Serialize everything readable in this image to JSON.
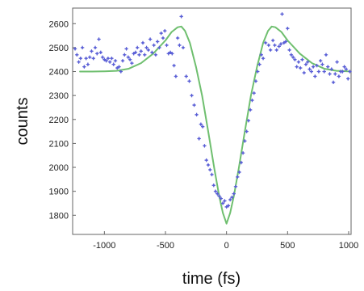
{
  "chart_data": {
    "type": "scatter",
    "title": "",
    "xlabel": "time (fs)",
    "ylabel": "counts",
    "xlim": [
      -1260,
      1020
    ],
    "ylim": [
      1720,
      2665
    ],
    "xticks": [
      -1000,
      -500,
      0,
      500,
      1000
    ],
    "yticks": [
      1800,
      1900,
      2000,
      2100,
      2200,
      2300,
      2400,
      2500,
      2600
    ],
    "grid": false,
    "colors": {
      "data": "#5a5fd6",
      "fit": "#6fbf6f",
      "axis": "#666666"
    },
    "series": [
      {
        "type": "scatter",
        "marker": "*",
        "points": [
          [
            -1240,
            2495
          ],
          [
            -1225,
            2470
          ],
          [
            -1210,
            2440
          ],
          [
            -1195,
            2455
          ],
          [
            -1180,
            2500
          ],
          [
            -1165,
            2420
          ],
          [
            -1150,
            2455
          ],
          [
            -1135,
            2430
          ],
          [
            -1120,
            2460
          ],
          [
            -1105,
            2485
          ],
          [
            -1090,
            2455
          ],
          [
            -1075,
            2500
          ],
          [
            -1060,
            2475
          ],
          [
            -1045,
            2535
          ],
          [
            -1030,
            2480
          ],
          [
            -1015,
            2460
          ],
          [
            -1000,
            2450
          ],
          [
            -985,
            2445
          ],
          [
            -970,
            2455
          ],
          [
            -955,
            2440
          ],
          [
            -940,
            2455
          ],
          [
            -925,
            2430
          ],
          [
            -910,
            2445
          ],
          [
            -895,
            2415
          ],
          [
            -880,
            2420
          ],
          [
            -865,
            2400
          ],
          [
            -850,
            2445
          ],
          [
            -835,
            2470
          ],
          [
            -820,
            2495
          ],
          [
            -805,
            2460
          ],
          [
            -790,
            2450
          ],
          [
            -775,
            2435
          ],
          [
            -760,
            2475
          ],
          [
            -745,
            2480
          ],
          [
            -730,
            2500
          ],
          [
            -715,
            2470
          ],
          [
            -700,
            2485
          ],
          [
            -685,
            2520
          ],
          [
            -670,
            2470
          ],
          [
            -655,
            2500
          ],
          [
            -640,
            2490
          ],
          [
            -625,
            2535
          ],
          [
            -610,
            2480
          ],
          [
            -595,
            2510
          ],
          [
            -580,
            2470
          ],
          [
            -565,
            2525
          ],
          [
            -550,
            2500
          ],
          [
            -535,
            2560
          ],
          [
            -520,
            2540
          ],
          [
            -505,
            2570
          ],
          [
            -490,
            2510
          ],
          [
            -475,
            2475
          ],
          [
            -460,
            2480
          ],
          [
            -445,
            2475
          ],
          [
            -430,
            2425
          ],
          [
            -415,
            2380
          ],
          [
            -400,
            2540
          ],
          [
            -385,
            2510
          ],
          [
            -370,
            2630
          ],
          [
            -355,
            2500
          ],
          [
            -330,
            2380
          ],
          [
            -305,
            2360
          ],
          [
            -285,
            2300
          ],
          [
            -265,
            2260
          ],
          [
            -245,
            2220
          ],
          [
            -225,
            2120
          ],
          [
            -210,
            2180
          ],
          [
            -195,
            2170
          ],
          [
            -180,
            2090
          ],
          [
            -165,
            2030
          ],
          [
            -150,
            2010
          ],
          [
            -135,
            1990
          ],
          [
            -120,
            1970
          ],
          [
            -105,
            1925
          ],
          [
            -90,
            1900
          ],
          [
            -75,
            1890
          ],
          [
            -60,
            1880
          ],
          [
            -45,
            1870
          ],
          [
            -30,
            1850
          ],
          [
            -15,
            1860
          ],
          [
            0,
            1835
          ],
          [
            15,
            1840
          ],
          [
            30,
            1865
          ],
          [
            45,
            1875
          ],
          [
            60,
            1890
          ],
          [
            75,
            1920
          ],
          [
            90,
            1960
          ],
          [
            105,
            1980
          ],
          [
            120,
            2020
          ],
          [
            135,
            2060
          ],
          [
            150,
            2110
          ],
          [
            165,
            2150
          ],
          [
            180,
            2195
          ],
          [
            195,
            2240
          ],
          [
            210,
            2280
          ],
          [
            225,
            2310
          ],
          [
            240,
            2360
          ],
          [
            255,
            2400
          ],
          [
            270,
            2430
          ],
          [
            285,
            2470
          ],
          [
            300,
            2455
          ],
          [
            320,
            2520
          ],
          [
            345,
            2510
          ],
          [
            360,
            2490
          ],
          [
            380,
            2530
          ],
          [
            395,
            2510
          ],
          [
            410,
            2490
          ],
          [
            430,
            2505
          ],
          [
            445,
            2515
          ],
          [
            455,
            2640
          ],
          [
            470,
            2520
          ],
          [
            485,
            2525
          ],
          [
            500,
            2580
          ],
          [
            515,
            2490
          ],
          [
            530,
            2470
          ],
          [
            545,
            2460
          ],
          [
            560,
            2450
          ],
          [
            575,
            2420
          ],
          [
            590,
            2440
          ],
          [
            605,
            2415
          ],
          [
            620,
            2450
          ],
          [
            635,
            2395
          ],
          [
            650,
            2430
          ],
          [
            665,
            2440
          ],
          [
            680,
            2410
          ],
          [
            695,
            2400
          ],
          [
            710,
            2420
          ],
          [
            725,
            2380
          ],
          [
            740,
            2425
          ],
          [
            755,
            2400
          ],
          [
            770,
            2445
          ],
          [
            785,
            2430
          ],
          [
            800,
            2400
          ],
          [
            815,
            2470
          ],
          [
            830,
            2420
          ],
          [
            845,
            2390
          ],
          [
            860,
            2410
          ],
          [
            875,
            2355
          ],
          [
            890,
            2390
          ],
          [
            905,
            2440
          ],
          [
            920,
            2380
          ],
          [
            935,
            2400
          ],
          [
            950,
            2400
          ],
          [
            965,
            2420
          ],
          [
            980,
            2410
          ],
          [
            995,
            2370
          ],
          [
            1010,
            2400
          ]
        ]
      },
      {
        "type": "line",
        "points": [
          [
            -1200,
            2400
          ],
          [
            -1100,
            2400
          ],
          [
            -1000,
            2401
          ],
          [
            -900,
            2403
          ],
          [
            -800,
            2412
          ],
          [
            -700,
            2435
          ],
          [
            -600,
            2475
          ],
          [
            -500,
            2530
          ],
          [
            -450,
            2565
          ],
          [
            -400,
            2585
          ],
          [
            -370,
            2588
          ],
          [
            -340,
            2570
          ],
          [
            -300,
            2520
          ],
          [
            -250,
            2420
          ],
          [
            -200,
            2300
          ],
          [
            -150,
            2150
          ],
          [
            -100,
            1995
          ],
          [
            -60,
            1880
          ],
          [
            -30,
            1810
          ],
          [
            0,
            1765
          ],
          [
            30,
            1810
          ],
          [
            60,
            1880
          ],
          [
            100,
            1995
          ],
          [
            150,
            2150
          ],
          [
            200,
            2300
          ],
          [
            250,
            2420
          ],
          [
            300,
            2520
          ],
          [
            340,
            2570
          ],
          [
            370,
            2588
          ],
          [
            400,
            2585
          ],
          [
            450,
            2565
          ],
          [
            500,
            2530
          ],
          [
            600,
            2475
          ],
          [
            700,
            2435
          ],
          [
            800,
            2412
          ],
          [
            900,
            2403
          ],
          [
            1000,
            2401
          ],
          [
            1010,
            2400
          ]
        ]
      }
    ]
  }
}
